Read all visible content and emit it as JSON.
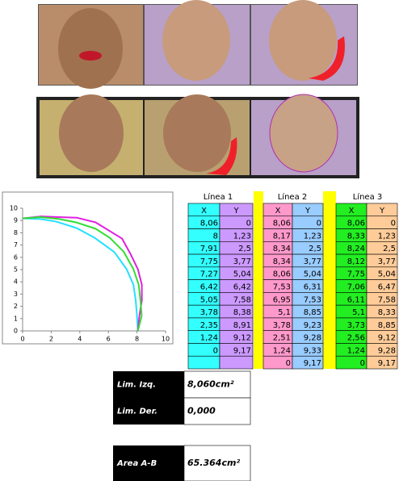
{
  "chart_data": {
    "type": "line",
    "xlim": [
      0,
      10
    ],
    "ylim": [
      0,
      10
    ],
    "xticks": [
      0,
      2,
      4,
      6,
      8,
      10
    ],
    "yticks": [
      0,
      1,
      2,
      3,
      4,
      5,
      6,
      7,
      8,
      9,
      10
    ],
    "series": [
      {
        "color": "#22e0ff",
        "x": [
          8.06,
          8,
          7.91,
          7.75,
          7.27,
          6.42,
          5.05,
          3.78,
          2.35,
          1.24,
          0
        ],
        "values": [
          0,
          1.23,
          2.5,
          3.77,
          5.04,
          6.42,
          7.58,
          8.38,
          8.91,
          9.12,
          9.17
        ]
      },
      {
        "color": "#e020e0",
        "x": [
          8.06,
          8.17,
          8.34,
          8.34,
          8.06,
          7.53,
          6.95,
          5.1,
          3.78,
          2.51,
          1.24,
          0
        ],
        "values": [
          0,
          1.23,
          2.5,
          3.77,
          5.04,
          6.31,
          7.53,
          8.85,
          9.23,
          9.28,
          9.33,
          9.17
        ]
      },
      {
        "color": "#33dd33",
        "x": [
          8.06,
          8.33,
          8.24,
          8.12,
          7.75,
          7.06,
          6.11,
          5.1,
          3.73,
          2.56,
          1.24,
          0
        ],
        "values": [
          0,
          1.23,
          2.5,
          3.77,
          5.04,
          6.47,
          7.58,
          8.33,
          8.85,
          9.12,
          9.28,
          9.17
        ]
      }
    ]
  },
  "tables": [
    {
      "title": "Línea 1",
      "header": [
        "X",
        "Y"
      ],
      "x_color": "#33ffff",
      "y_color": "#cc99ff",
      "rows": [
        [
          "8,06",
          "0"
        ],
        [
          "8",
          "1,23"
        ],
        [
          "7,91",
          "2,5"
        ],
        [
          "7,75",
          "3,77"
        ],
        [
          "7,27",
          "5,04"
        ],
        [
          "6,42",
          "6,42"
        ],
        [
          "5,05",
          "7,58"
        ],
        [
          "3,78",
          "8,38"
        ],
        [
          "2,35",
          "8,91"
        ],
        [
          "1,24",
          "9,12"
        ],
        [
          "0",
          "9,17"
        ]
      ]
    },
    {
      "title": "Línea 2",
      "header": [
        "X",
        "Y"
      ],
      "x_color": "#ff99cc",
      "y_color": "#99ccff",
      "rows": [
        [
          "8,06",
          "0"
        ],
        [
          "8,17",
          "1,23"
        ],
        [
          "8,34",
          "2,5"
        ],
        [
          "8,34",
          "3,77"
        ],
        [
          "8,06",
          "5,04"
        ],
        [
          "7,53",
          "6,31"
        ],
        [
          "6,95",
          "7,53"
        ],
        [
          "5,1",
          "8,85"
        ],
        [
          "3,78",
          "9,23"
        ],
        [
          "2,51",
          "9,28"
        ],
        [
          "1,24",
          "9,33"
        ],
        [
          "0",
          "9,17"
        ]
      ]
    },
    {
      "title": "Línea 3",
      "header": [
        "X",
        "Y"
      ],
      "x_color": "#22ee22",
      "y_color": "#ffcc99",
      "rows": [
        [
          "8,06",
          "0"
        ],
        [
          "8,33",
          "1,23"
        ],
        [
          "8,24",
          "2,5"
        ],
        [
          "8,12",
          "3,77"
        ],
        [
          "7,75",
          "5,04"
        ],
        [
          "7,06",
          "6,47"
        ],
        [
          "6,11",
          "7,58"
        ],
        [
          "5,1",
          "8,33"
        ],
        [
          "3,73",
          "8,85"
        ],
        [
          "2,56",
          "9,12"
        ],
        [
          "1,24",
          "9,28"
        ],
        [
          "0",
          "9,17"
        ]
      ]
    }
  ],
  "results": [
    {
      "label": "Lim. Izq.",
      "value": "8,060cm²"
    },
    {
      "label": "Lim. Der.",
      "value": "0,000"
    },
    {
      "label": "Area A-B",
      "value": "65.364cm²"
    }
  ]
}
